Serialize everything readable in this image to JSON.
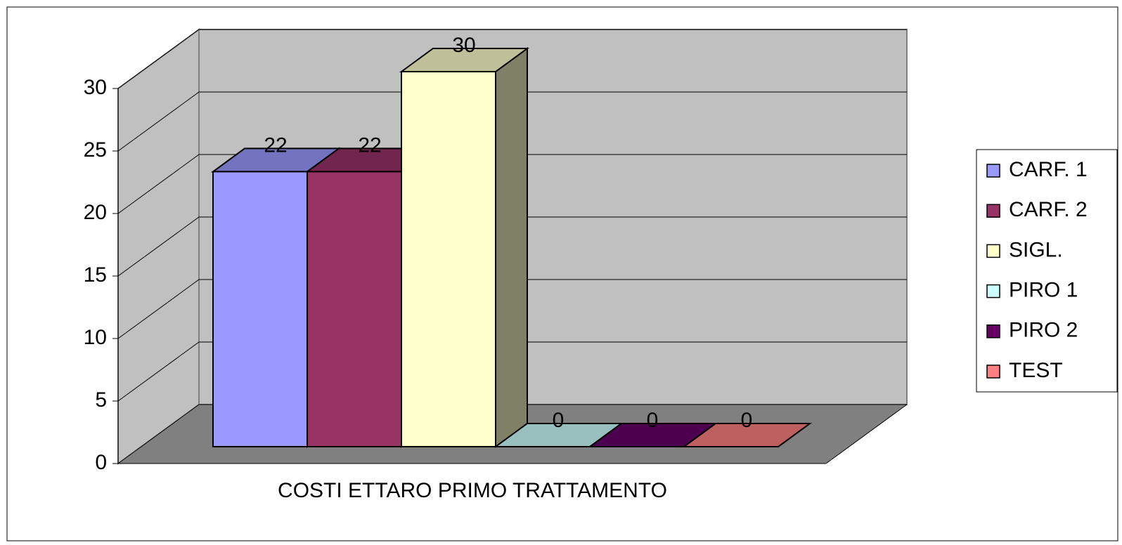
{
  "chart_data": {
    "type": "bar",
    "categories": [
      "COSTI ETTARO PRIMO TRATTAMENTO"
    ],
    "series": [
      {
        "name": "CARF. 1",
        "color": "#9999ff",
        "values": [
          22
        ]
      },
      {
        "name": "CARF. 2",
        "color": "#993366",
        "values": [
          22
        ]
      },
      {
        "name": "SIGL.",
        "color": "#ffffcc",
        "values": [
          30
        ]
      },
      {
        "name": "PIRO 1",
        "color": "#ccffff",
        "values": [
          0
        ]
      },
      {
        "name": "PIRO 2",
        "color": "#660066",
        "values": [
          0
        ]
      },
      {
        "name": "TEST",
        "color": "#ff8080",
        "values": [
          0
        ]
      }
    ],
    "ylim": [
      0,
      30
    ],
    "yticks": [
      0,
      5,
      10,
      15,
      20,
      25,
      30
    ],
    "grid": true,
    "legend": "right"
  }
}
